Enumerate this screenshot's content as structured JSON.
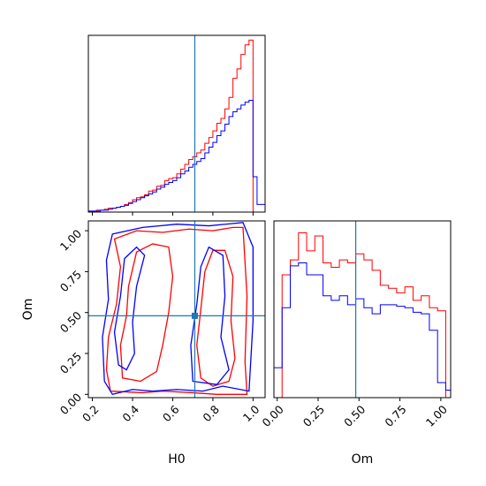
{
  "chart_data": {
    "type": "corner",
    "parameters": [
      "H0",
      "Om"
    ],
    "truths": {
      "H0": 0.71,
      "Om": 0.48
    },
    "series_colors": [
      "#ff0000",
      "#0000ff"
    ],
    "truth_color": "#1f77b4",
    "axes": {
      "H0": {
        "range": [
          0.18,
          1.06
        ],
        "ticks": [
          "0.2",
          "0.4",
          "0.6",
          "0.8",
          "1.0"
        ],
        "tick_values": [
          0.2,
          0.4,
          0.6,
          0.8,
          1.0
        ],
        "label": "H0"
      },
      "Om": {
        "range": [
          -0.02,
          1.06
        ],
        "ticks": [
          "0.00",
          "0.25",
          "0.50",
          "0.75",
          "1.00"
        ],
        "tick_values": [
          0.0,
          0.25,
          0.5,
          0.75,
          1.0
        ],
        "label": "Om"
      }
    },
    "hist_H0": {
      "edges": [
        0.18,
        0.2,
        0.22,
        0.24,
        0.26,
        0.28,
        0.3,
        0.32,
        0.34,
        0.36,
        0.38,
        0.4,
        0.42,
        0.44,
        0.46,
        0.48,
        0.5,
        0.52,
        0.54,
        0.56,
        0.58,
        0.6,
        0.62,
        0.64,
        0.66,
        0.68,
        0.7,
        0.72,
        0.74,
        0.76,
        0.78,
        0.8,
        0.82,
        0.84,
        0.86,
        0.88,
        0.9,
        0.92,
        0.94,
        0.96,
        0.98,
        1.0,
        1.02,
        1.04,
        1.06
      ],
      "ymax": 185,
      "series": [
        {
          "color": "red",
          "values": [
            1,
            1,
            2,
            2,
            3,
            4,
            4,
            5,
            6,
            8,
            10,
            13,
            15,
            16,
            18,
            22,
            23,
            27,
            28,
            33,
            35,
            36,
            40,
            45,
            50,
            55,
            58,
            62,
            65,
            72,
            78,
            85,
            93,
            98,
            108,
            120,
            140,
            150,
            165,
            175,
            180,
            0,
            0,
            0
          ]
        },
        {
          "color": "blue",
          "values": [
            1,
            1,
            1,
            2,
            2,
            3,
            4,
            5,
            6,
            7,
            9,
            11,
            13,
            15,
            17,
            19,
            21,
            24,
            26,
            29,
            31,
            33,
            36,
            40,
            43,
            47,
            50,
            53,
            56,
            62,
            68,
            73,
            80,
            85,
            92,
            100,
            105,
            108,
            112,
            115,
            117,
            37,
            8,
            8
          ]
        }
      ]
    },
    "hist_Om": {
      "edges": [
        -0.02,
        0.03,
        0.08,
        0.13,
        0.18,
        0.23,
        0.28,
        0.33,
        0.38,
        0.43,
        0.48,
        0.53,
        0.58,
        0.63,
        0.68,
        0.73,
        0.78,
        0.83,
        0.88,
        0.93,
        0.98,
        1.03,
        1.06
      ],
      "ymax": 118,
      "series": [
        {
          "color": "red",
          "values": [
            0,
            82,
            92,
            110,
            98,
            108,
            90,
            87,
            92,
            90,
            96,
            92,
            85,
            75,
            73,
            70,
            74,
            65,
            68,
            60,
            58,
            0
          ]
        },
        {
          "color": "blue",
          "values": [
            20,
            60,
            88,
            90,
            82,
            82,
            68,
            65,
            68,
            62,
            66,
            60,
            56,
            62,
            62,
            61,
            60,
            57,
            56,
            45,
            10,
            5
          ]
        }
      ]
    },
    "contours": [
      {
        "color": "red",
        "level": "outer",
        "points": [
          [
            0.29,
            0.02
          ],
          [
            0.27,
            0.15
          ],
          [
            0.28,
            0.35
          ],
          [
            0.32,
            0.55
          ],
          [
            0.34,
            0.78
          ],
          [
            0.31,
            0.95
          ],
          [
            0.42,
            1.0
          ],
          [
            0.55,
            0.99
          ],
          [
            0.68,
            1.01
          ],
          [
            0.8,
            1.0
          ],
          [
            0.9,
            1.02
          ],
          [
            0.95,
            1.02
          ],
          [
            0.97,
            0.6
          ],
          [
            0.96,
            0.2
          ],
          [
            0.97,
            0.0
          ],
          [
            0.82,
            0.0
          ],
          [
            0.7,
            0.01
          ],
          [
            0.55,
            0.02
          ],
          [
            0.45,
            0.01
          ],
          [
            0.29,
            0.02
          ]
        ]
      },
      {
        "color": "red",
        "level": "inner",
        "points": [
          [
            0.35,
            0.1
          ],
          [
            0.34,
            0.3
          ],
          [
            0.37,
            0.48
          ],
          [
            0.38,
            0.66
          ],
          [
            0.42,
            0.87
          ],
          [
            0.5,
            0.92
          ],
          [
            0.58,
            0.9
          ],
          [
            0.6,
            0.72
          ],
          [
            0.58,
            0.5
          ],
          [
            0.55,
            0.3
          ],
          [
            0.52,
            0.14
          ],
          [
            0.44,
            0.08
          ],
          [
            0.35,
            0.1
          ]
        ]
      },
      {
        "color": "red",
        "level": "inner",
        "points": [
          [
            0.74,
            0.1
          ],
          [
            0.72,
            0.3
          ],
          [
            0.74,
            0.52
          ],
          [
            0.76,
            0.75
          ],
          [
            0.8,
            0.88
          ],
          [
            0.86,
            0.88
          ],
          [
            0.9,
            0.72
          ],
          [
            0.89,
            0.45
          ],
          [
            0.91,
            0.22
          ],
          [
            0.88,
            0.08
          ],
          [
            0.8,
            0.05
          ],
          [
            0.74,
            0.1
          ]
        ]
      },
      {
        "color": "blue",
        "level": "outer",
        "points": [
          [
            0.26,
            0.08
          ],
          [
            0.25,
            0.35
          ],
          [
            0.28,
            0.58
          ],
          [
            0.27,
            0.82
          ],
          [
            0.3,
            0.98
          ],
          [
            0.45,
            1.02
          ],
          [
            0.62,
            1.04
          ],
          [
            0.78,
            1.03
          ],
          [
            0.95,
            1.05
          ],
          [
            1.0,
            0.9
          ],
          [
            1.0,
            0.45
          ],
          [
            0.98,
            0.02
          ],
          [
            0.85,
            0.05
          ],
          [
            0.75,
            0.02
          ],
          [
            0.62,
            0.03
          ],
          [
            0.5,
            0.02
          ],
          [
            0.4,
            0.03
          ],
          [
            0.3,
            0.0
          ],
          [
            0.26,
            0.08
          ]
        ]
      },
      {
        "color": "blue",
        "level": "inner",
        "points": [
          [
            0.33,
            0.18
          ],
          [
            0.31,
            0.38
          ],
          [
            0.34,
            0.6
          ],
          [
            0.36,
            0.83
          ],
          [
            0.42,
            0.9
          ],
          [
            0.46,
            0.85
          ],
          [
            0.42,
            0.66
          ],
          [
            0.4,
            0.44
          ],
          [
            0.41,
            0.25
          ],
          [
            0.37,
            0.15
          ],
          [
            0.33,
            0.18
          ]
        ]
      },
      {
        "color": "blue",
        "level": "inner",
        "points": [
          [
            0.7,
            0.08
          ],
          [
            0.69,
            0.3
          ],
          [
            0.72,
            0.55
          ],
          [
            0.74,
            0.78
          ],
          [
            0.78,
            0.9
          ],
          [
            0.85,
            0.85
          ],
          [
            0.86,
            0.6
          ],
          [
            0.84,
            0.35
          ],
          [
            0.88,
            0.15
          ],
          [
            0.82,
            0.06
          ],
          [
            0.7,
            0.08
          ]
        ]
      }
    ]
  }
}
